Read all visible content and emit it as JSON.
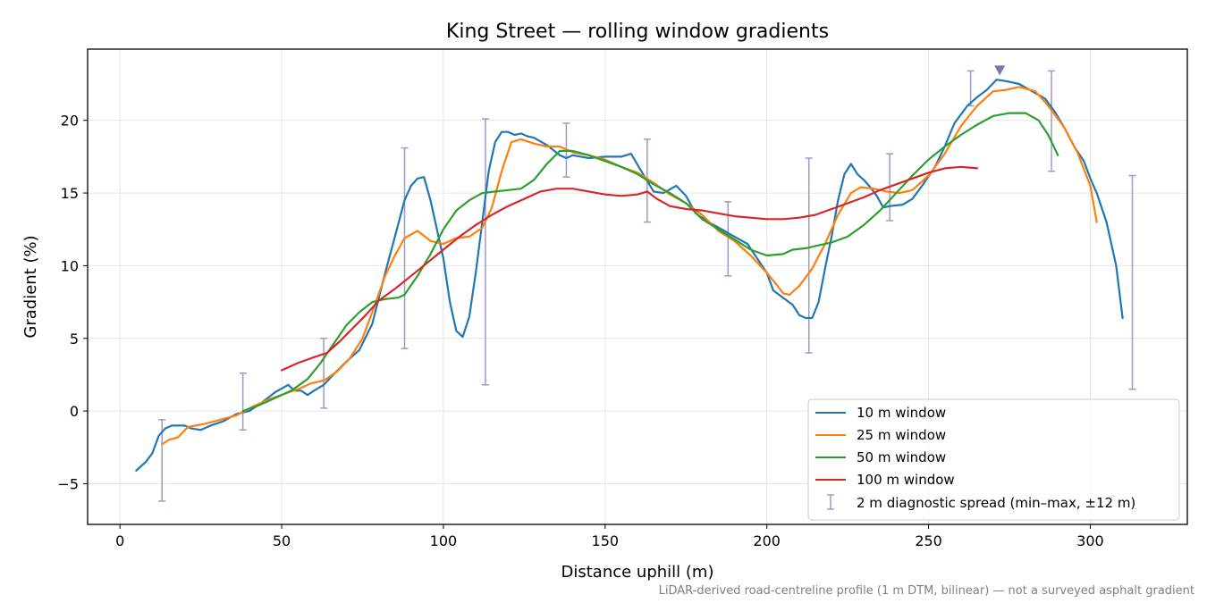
{
  "chart_data": {
    "type": "line",
    "title": "King Street — rolling window gradients",
    "xlabel": "Distance uphill (m)",
    "ylabel": "Gradient (%)",
    "xlim": [
      -10,
      330
    ],
    "ylim": [
      -7.8,
      24.9
    ],
    "xticks": [
      0,
      50,
      100,
      150,
      200,
      250,
      300
    ],
    "yticks": [
      -5,
      0,
      5,
      10,
      15,
      20
    ],
    "ytick_labels": [
      "−5",
      "0",
      "5",
      "10",
      "15",
      "20"
    ],
    "grid": true,
    "legend_position": "lower right",
    "series": [
      {
        "name": "10 m window",
        "color": "#1f77b4",
        "points": [
          [
            5,
            -4.1
          ],
          [
            8,
            -3.5
          ],
          [
            10,
            -2.9
          ],
          [
            12,
            -1.7
          ],
          [
            14,
            -1.2
          ],
          [
            16,
            -1.0
          ],
          [
            20,
            -1.0
          ],
          [
            22,
            -1.2
          ],
          [
            25,
            -1.3
          ],
          [
            28,
            -1.0
          ],
          [
            32,
            -0.7
          ],
          [
            36,
            -0.2
          ],
          [
            40,
            0.0
          ],
          [
            44,
            0.6
          ],
          [
            48,
            1.3
          ],
          [
            52,
            1.8
          ],
          [
            54,
            1.4
          ],
          [
            56,
            1.4
          ],
          [
            58,
            1.1
          ],
          [
            60,
            1.4
          ],
          [
            63,
            1.8
          ],
          [
            66,
            2.5
          ],
          [
            70,
            3.4
          ],
          [
            74,
            4.2
          ],
          [
            78,
            6.0
          ],
          [
            82,
            9.5
          ],
          [
            85,
            12.0
          ],
          [
            88,
            14.5
          ],
          [
            90,
            15.5
          ],
          [
            92,
            16.0
          ],
          [
            94,
            16.1
          ],
          [
            96,
            14.5
          ],
          [
            98,
            12.5
          ],
          [
            100,
            10.5
          ],
          [
            102,
            7.5
          ],
          [
            104,
            5.5
          ],
          [
            106,
            5.1
          ],
          [
            108,
            6.5
          ],
          [
            110,
            9.5
          ],
          [
            112,
            13.0
          ],
          [
            114,
            16.5
          ],
          [
            116,
            18.5
          ],
          [
            118,
            19.2
          ],
          [
            120,
            19.2
          ],
          [
            122,
            19.0
          ],
          [
            124,
            19.1
          ],
          [
            126,
            18.9
          ],
          [
            128,
            18.8
          ],
          [
            132,
            18.3
          ],
          [
            136,
            17.6
          ],
          [
            138,
            17.4
          ],
          [
            140,
            17.6
          ],
          [
            145,
            17.4
          ],
          [
            150,
            17.5
          ],
          [
            155,
            17.5
          ],
          [
            158,
            17.7
          ],
          [
            162,
            16.2
          ],
          [
            165,
            15.1
          ],
          [
            168,
            15.0
          ],
          [
            172,
            15.5
          ],
          [
            175,
            14.8
          ],
          [
            178,
            13.6
          ],
          [
            182,
            13.0
          ],
          [
            186,
            12.5
          ],
          [
            190,
            12.0
          ],
          [
            194,
            11.5
          ],
          [
            197,
            10.5
          ],
          [
            200,
            9.5
          ],
          [
            202,
            8.3
          ],
          [
            205,
            7.8
          ],
          [
            208,
            7.3
          ],
          [
            210,
            6.6
          ],
          [
            212,
            6.4
          ],
          [
            214,
            6.4
          ],
          [
            216,
            7.5
          ],
          [
            218,
            9.8
          ],
          [
            220,
            12.0
          ],
          [
            222,
            14.5
          ],
          [
            224,
            16.3
          ],
          [
            226,
            17.0
          ],
          [
            228,
            16.3
          ],
          [
            230,
            15.9
          ],
          [
            232,
            15.4
          ],
          [
            234,
            14.8
          ],
          [
            236,
            14.0
          ],
          [
            238,
            14.1
          ],
          [
            242,
            14.2
          ],
          [
            245,
            14.6
          ],
          [
            248,
            15.5
          ],
          [
            252,
            16.8
          ],
          [
            255,
            18.2
          ],
          [
            258,
            19.8
          ],
          [
            262,
            21.0
          ],
          [
            265,
            21.6
          ],
          [
            268,
            22.1
          ],
          [
            271,
            22.8
          ],
          [
            274,
            22.7
          ],
          [
            278,
            22.5
          ],
          [
            282,
            22.0
          ],
          [
            286,
            21.5
          ],
          [
            289,
            20.6
          ],
          [
            292,
            19.5
          ],
          [
            295,
            18.2
          ],
          [
            298,
            17.2
          ],
          [
            300,
            16.0
          ],
          [
            302,
            15.0
          ],
          [
            305,
            13.0
          ],
          [
            308,
            10.0
          ],
          [
            310,
            6.4
          ]
        ]
      },
      {
        "name": "25 m window",
        "color": "#ff7f0e",
        "points": [
          [
            13,
            -2.3
          ],
          [
            15,
            -2.0
          ],
          [
            18,
            -1.8
          ],
          [
            21,
            -1.1
          ],
          [
            26,
            -0.9
          ],
          [
            31,
            -0.6
          ],
          [
            36,
            -0.3
          ],
          [
            41,
            0.3
          ],
          [
            46,
            0.8
          ],
          [
            51,
            1.2
          ],
          [
            55,
            1.5
          ],
          [
            59,
            1.9
          ],
          [
            63,
            2.1
          ],
          [
            67,
            2.7
          ],
          [
            71,
            3.6
          ],
          [
            75,
            5.0
          ],
          [
            78,
            6.8
          ],
          [
            82,
            9.3
          ],
          [
            85,
            10.7
          ],
          [
            88,
            11.9
          ],
          [
            92,
            12.4
          ],
          [
            96,
            11.7
          ],
          [
            100,
            11.5
          ],
          [
            104,
            11.9
          ],
          [
            108,
            12.0
          ],
          [
            112,
            12.6
          ],
          [
            115,
            14.0
          ],
          [
            118,
            16.5
          ],
          [
            121,
            18.5
          ],
          [
            124,
            18.7
          ],
          [
            128,
            18.4
          ],
          [
            132,
            18.2
          ],
          [
            136,
            18.2
          ],
          [
            140,
            17.8
          ],
          [
            145,
            17.6
          ],
          [
            150,
            17.3
          ],
          [
            155,
            16.8
          ],
          [
            160,
            16.4
          ],
          [
            165,
            15.7
          ],
          [
            170,
            14.9
          ],
          [
            175,
            14.3
          ],
          [
            180,
            13.5
          ],
          [
            185,
            12.4
          ],
          [
            190,
            11.7
          ],
          [
            195,
            10.7
          ],
          [
            200,
            9.5
          ],
          [
            203,
            8.7
          ],
          [
            205,
            8.1
          ],
          [
            207,
            8.0
          ],
          [
            210,
            8.6
          ],
          [
            214,
            9.8
          ],
          [
            218,
            11.5
          ],
          [
            222,
            13.5
          ],
          [
            226,
            15.0
          ],
          [
            229,
            15.4
          ],
          [
            233,
            15.3
          ],
          [
            237,
            15.1
          ],
          [
            241,
            15.0
          ],
          [
            245,
            15.2
          ],
          [
            250,
            16.2
          ],
          [
            255,
            17.7
          ],
          [
            260,
            19.6
          ],
          [
            265,
            21.0
          ],
          [
            270,
            22.0
          ],
          [
            274,
            22.1
          ],
          [
            278,
            22.3
          ],
          [
            283,
            22.0
          ],
          [
            287,
            21.0
          ],
          [
            292,
            19.5
          ],
          [
            296,
            17.8
          ],
          [
            300,
            15.5
          ],
          [
            302,
            13.0
          ]
        ]
      },
      {
        "name": "50 m window",
        "color": "#2ca02c",
        "points": [
          [
            38,
            0.0
          ],
          [
            43,
            0.4
          ],
          [
            48,
            0.9
          ],
          [
            53,
            1.4
          ],
          [
            58,
            2.2
          ],
          [
            62,
            3.3
          ],
          [
            66,
            4.6
          ],
          [
            70,
            5.9
          ],
          [
            74,
            6.8
          ],
          [
            78,
            7.5
          ],
          [
            82,
            7.7
          ],
          [
            86,
            7.8
          ],
          [
            88,
            8.0
          ],
          [
            92,
            9.3
          ],
          [
            96,
            10.8
          ],
          [
            100,
            12.5
          ],
          [
            104,
            13.8
          ],
          [
            108,
            14.5
          ],
          [
            112,
            15.0
          ],
          [
            116,
            15.1
          ],
          [
            120,
            15.2
          ],
          [
            124,
            15.3
          ],
          [
            128,
            15.9
          ],
          [
            132,
            17.0
          ],
          [
            136,
            17.9
          ],
          [
            140,
            17.9
          ],
          [
            145,
            17.6
          ],
          [
            150,
            17.2
          ],
          [
            155,
            16.8
          ],
          [
            160,
            16.3
          ],
          [
            165,
            15.6
          ],
          [
            170,
            15.0
          ],
          [
            175,
            14.3
          ],
          [
            180,
            13.2
          ],
          [
            185,
            12.5
          ],
          [
            190,
            11.8
          ],
          [
            195,
            11.1
          ],
          [
            200,
            10.7
          ],
          [
            205,
            10.8
          ],
          [
            208,
            11.1
          ],
          [
            212,
            11.2
          ],
          [
            216,
            11.4
          ],
          [
            220,
            11.6
          ],
          [
            225,
            12.0
          ],
          [
            230,
            12.8
          ],
          [
            235,
            13.8
          ],
          [
            240,
            15.0
          ],
          [
            245,
            16.2
          ],
          [
            250,
            17.3
          ],
          [
            255,
            18.2
          ],
          [
            260,
            19.0
          ],
          [
            265,
            19.7
          ],
          [
            270,
            20.3
          ],
          [
            275,
            20.5
          ],
          [
            280,
            20.5
          ],
          [
            284,
            20.0
          ],
          [
            287,
            19.0
          ],
          [
            290,
            17.6
          ]
        ]
      },
      {
        "name": "100 m window",
        "color": "#d62728",
        "points": [
          [
            50,
            2.8
          ],
          [
            55,
            3.3
          ],
          [
            60,
            3.7
          ],
          [
            64,
            4.0
          ],
          [
            68,
            4.8
          ],
          [
            72,
            5.7
          ],
          [
            76,
            6.6
          ],
          [
            80,
            7.6
          ],
          [
            85,
            8.4
          ],
          [
            90,
            9.3
          ],
          [
            95,
            10.2
          ],
          [
            100,
            11.1
          ],
          [
            105,
            12.0
          ],
          [
            110,
            12.8
          ],
          [
            115,
            13.5
          ],
          [
            120,
            14.1
          ],
          [
            125,
            14.6
          ],
          [
            130,
            15.1
          ],
          [
            135,
            15.3
          ],
          [
            140,
            15.3
          ],
          [
            145,
            15.1
          ],
          [
            150,
            14.9
          ],
          [
            155,
            14.8
          ],
          [
            160,
            14.9
          ],
          [
            163,
            15.1
          ],
          [
            166,
            14.6
          ],
          [
            170,
            14.1
          ],
          [
            175,
            13.9
          ],
          [
            180,
            13.8
          ],
          [
            185,
            13.6
          ],
          [
            190,
            13.4
          ],
          [
            195,
            13.3
          ],
          [
            200,
            13.2
          ],
          [
            205,
            13.2
          ],
          [
            210,
            13.3
          ],
          [
            215,
            13.5
          ],
          [
            220,
            13.9
          ],
          [
            225,
            14.3
          ],
          [
            230,
            14.7
          ],
          [
            235,
            15.2
          ],
          [
            240,
            15.6
          ],
          [
            245,
            16.0
          ],
          [
            250,
            16.4
          ],
          [
            255,
            16.7
          ],
          [
            260,
            16.8
          ],
          [
            265,
            16.7
          ]
        ]
      }
    ],
    "error_bars": {
      "name": "2 m diagnostic spread (min–max, ±12 m)",
      "color": "#9e9ac8",
      "items": [
        {
          "x": 13,
          "min": -6.2,
          "max": -0.6
        },
        {
          "x": 38,
          "min": -1.3,
          "max": 2.6
        },
        {
          "x": 63,
          "min": 0.2,
          "max": 5.0
        },
        {
          "x": 88,
          "min": 4.3,
          "max": 18.1
        },
        {
          "x": 113,
          "min": 1.8,
          "max": 20.1
        },
        {
          "x": 138,
          "min": 16.1,
          "max": 19.8
        },
        {
          "x": 163,
          "min": 13.0,
          "max": 18.7
        },
        {
          "x": 188,
          "min": 9.3,
          "max": 14.4
        },
        {
          "x": 213,
          "min": 4.0,
          "max": 17.4
        },
        {
          "x": 238,
          "min": 13.1,
          "max": 17.7
        },
        {
          "x": 263,
          "min": 21.0,
          "max": 23.4
        },
        {
          "x": 288,
          "min": 16.5,
          "max": 23.4
        },
        {
          "x": 313,
          "min": 1.5,
          "max": 16.2
        }
      ]
    },
    "marker": {
      "x": 272,
      "y": 23.4,
      "shape": "triangle-down",
      "color": "#8172b3"
    }
  },
  "footnote": "LiDAR-derived road-centreline profile (1 m DTM, bilinear) — not a surveyed asphalt gradient"
}
